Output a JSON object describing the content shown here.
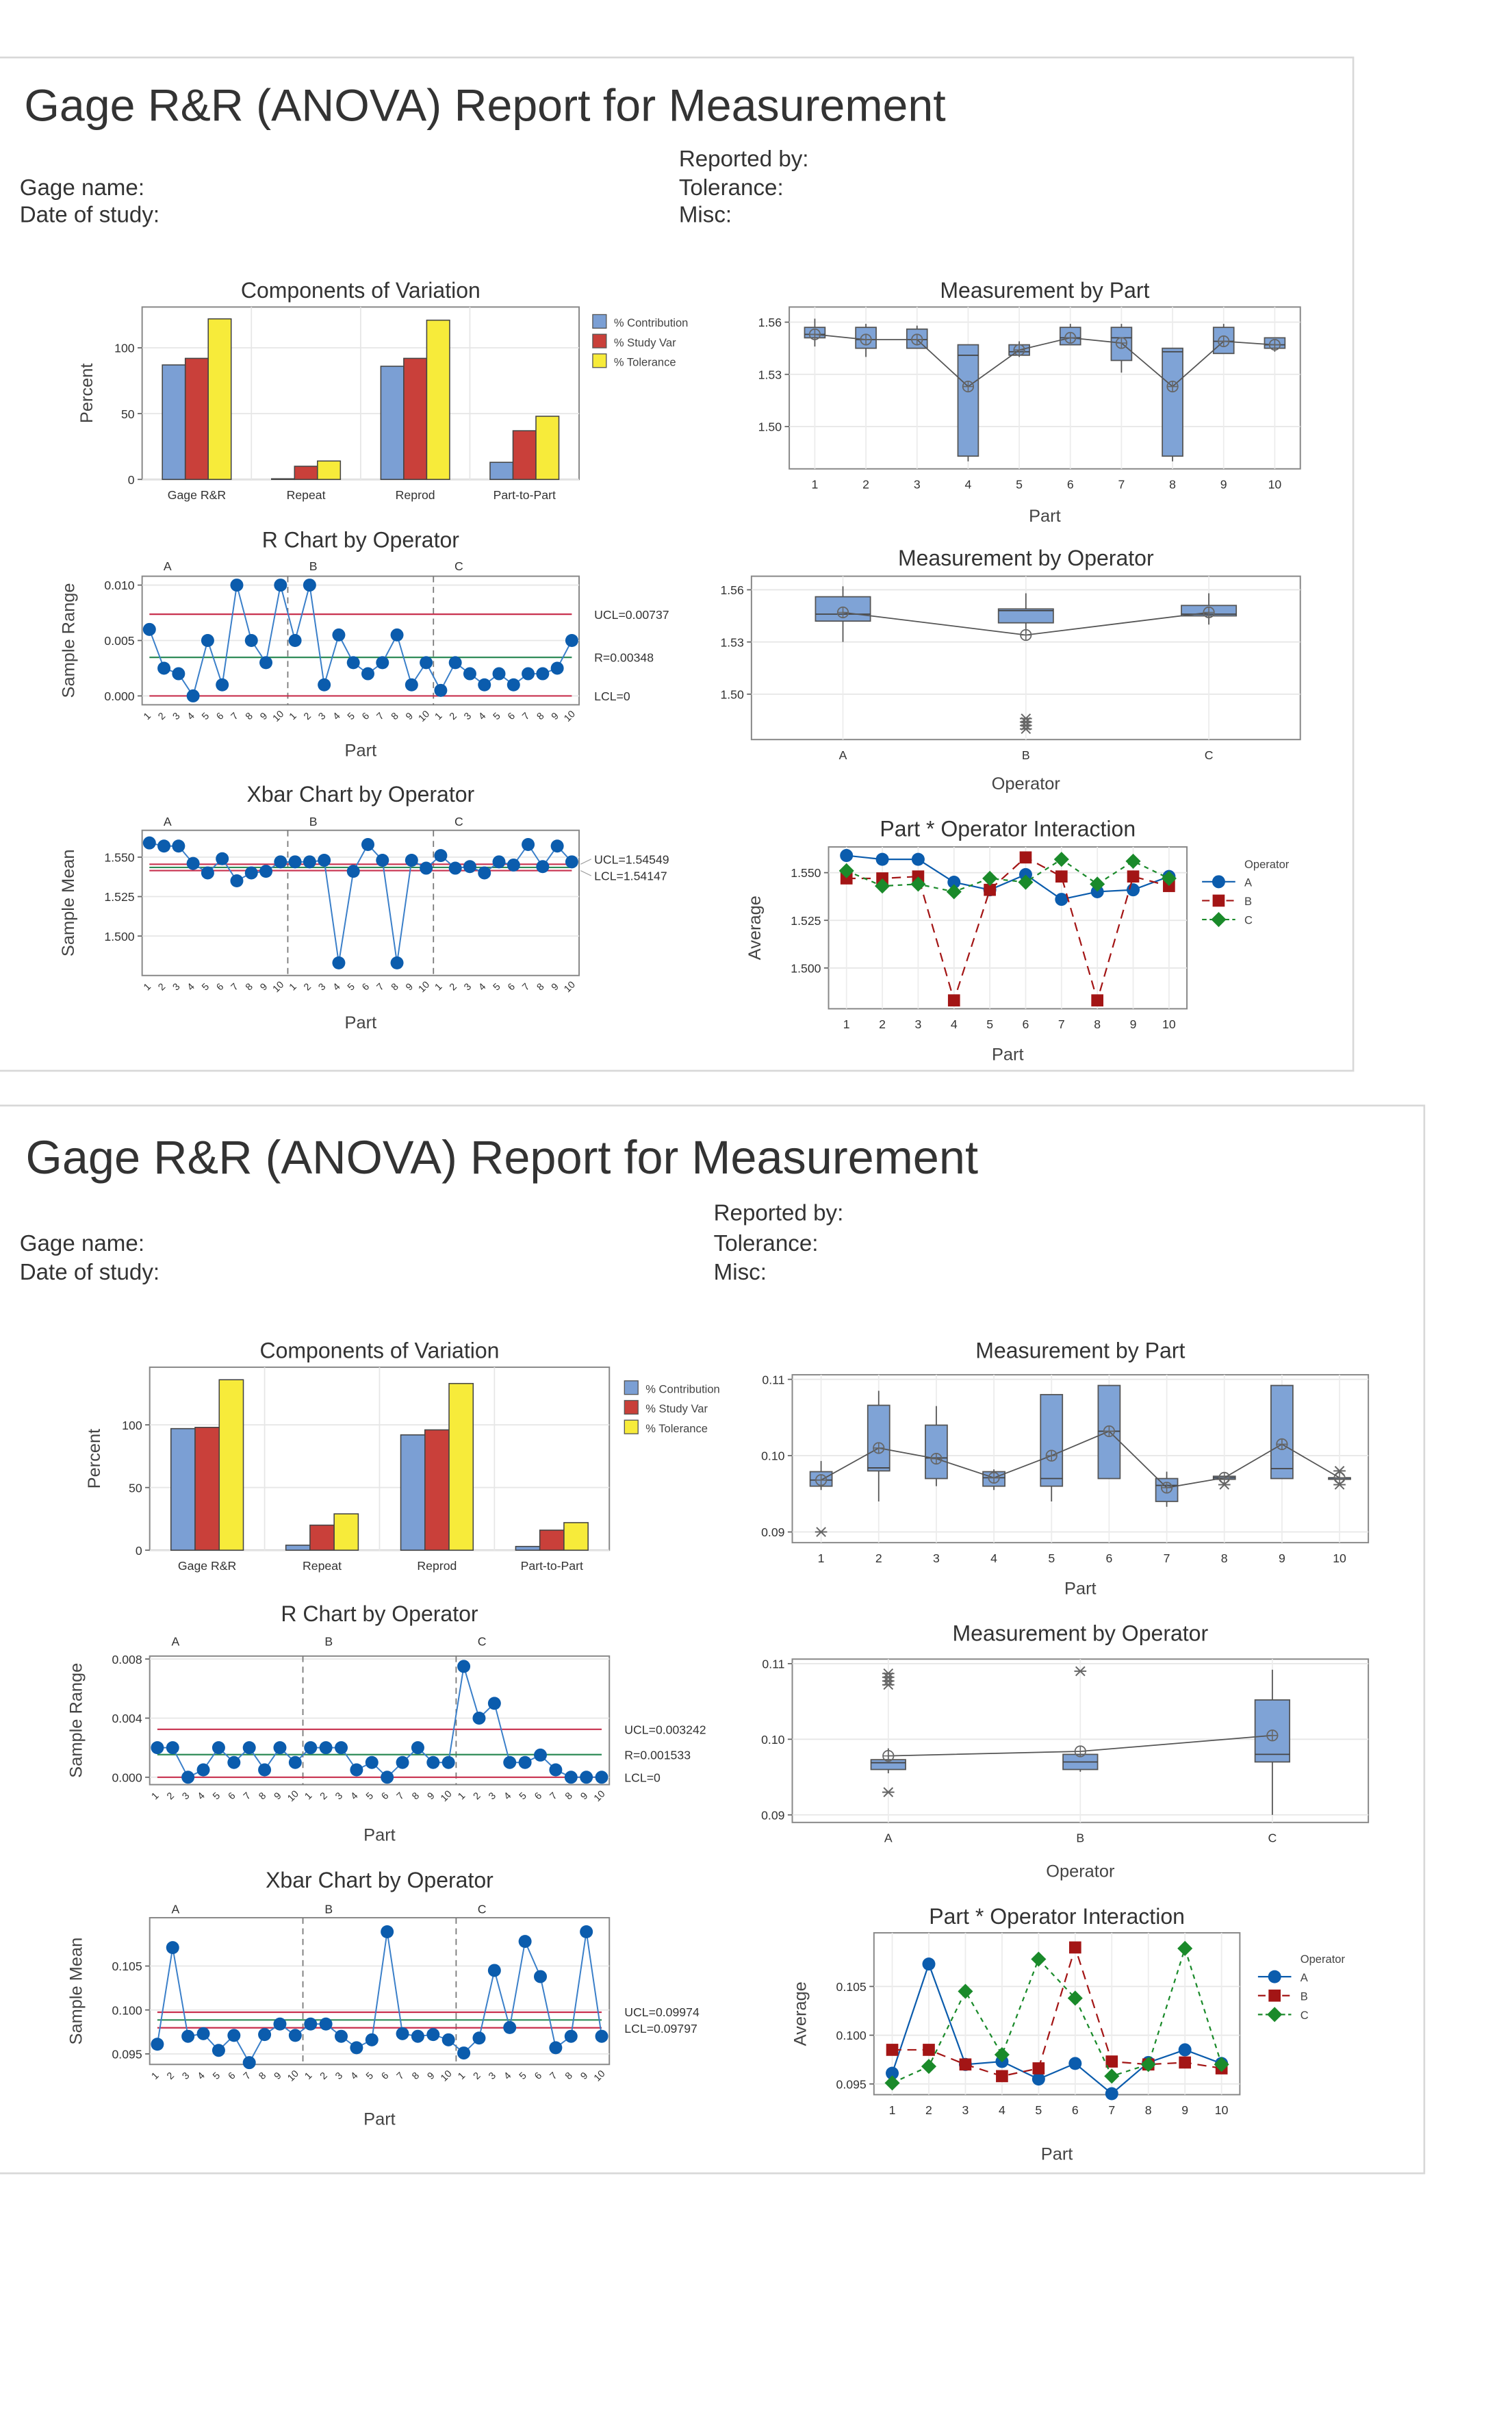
{
  "reports": [
    {
      "title": "Gage R&R (ANOVA) Report for Measurement",
      "reported_by": "Reported by:",
      "gage_name": "Gage name:",
      "tolerance": "Tolerance:",
      "date_of_study": "Date of study:",
      "misc": "Misc:"
    },
    {
      "title": "Gage R&R (ANOVA) Report for Measurement",
      "reported_by": "Reported by:",
      "gage_name": "Gage name:",
      "tolerance": "Tolerance:",
      "date_of_study": "Date of study:",
      "misc": "Misc:"
    }
  ],
  "colors": {
    "contribution": "#7b9fd4",
    "study_var": "#c9403a",
    "tolerance": "#f7eb3a",
    "point": "#0b5cad",
    "limit": "#c8304e",
    "center": "#2e8b57",
    "box": "#7fa3d6",
    "op_a": "#0b5cad",
    "op_b": "#a31515",
    "op_c": "#1a8a2a"
  },
  "chart_data": [
    {
      "type": "bar",
      "title": "Components of Variation",
      "ylabel": "Percent",
      "ylim": [
        0,
        131
      ],
      "yticks": [
        "0",
        "50",
        "100"
      ],
      "grid": true,
      "legend": "right",
      "categories": [
        "Gage R&R",
        "Repeat",
        "Reprod",
        "Part-to-Part"
      ],
      "series": [
        {
          "name": "% Contribution",
          "values": [
            87,
            0.5,
            86,
            13
          ]
        },
        {
          "name": "% Study Var",
          "values": [
            92,
            10,
            92,
            37
          ]
        },
        {
          "name": "% Tolerance",
          "values": [
            122,
            14,
            121,
            48
          ]
        }
      ]
    },
    {
      "type": "line",
      "title": "R Chart by Operator",
      "ylabel": "Sample Range",
      "xlabel": "Part",
      "ylim": [
        -0.0008,
        0.0108
      ],
      "yticks": [
        "0.000",
        "0.005",
        "0.010"
      ],
      "x_tick_labels": [
        "1",
        "2",
        "3",
        "4",
        "5",
        "6",
        "7",
        "8",
        "9",
        "10"
      ],
      "series": [
        {
          "name": "A",
          "values": [
            0.006,
            0.0025,
            0.002,
            0,
            0.005,
            0.001,
            0.01,
            0.005,
            0.003,
            0.01
          ]
        },
        {
          "name": "B",
          "values": [
            0.005,
            0.01,
            0.001,
            0.0055,
            0.003,
            0.002,
            0.003,
            0.0055,
            0.001,
            0.003
          ]
        },
        {
          "name": "C",
          "values": [
            0.0005,
            0.003,
            0.002,
            0.001,
            0.002,
            0.001,
            0.002,
            0.002,
            0.0025,
            0.005
          ]
        }
      ],
      "limits": [
        {
          "label": "UCL=0.00737",
          "value": 0.00737,
          "kind": "limit"
        },
        {
          "label": "R=0.00348",
          "value": 0.00348,
          "kind": "center"
        },
        {
          "label": "LCL=0",
          "value": 0,
          "kind": "limit"
        }
      ]
    },
    {
      "type": "line",
      "title": "Xbar Chart by Operator",
      "ylabel": "Sample Mean",
      "xlabel": "Part",
      "ylim": [
        1.475,
        1.567
      ],
      "yticks": [
        "1.500",
        "1.525",
        "1.550"
      ],
      "x_tick_labels": [
        "1",
        "2",
        "3",
        "4",
        "5",
        "6",
        "7",
        "8",
        "9",
        "10"
      ],
      "series": [
        {
          "name": "A",
          "values": [
            1.559,
            1.557,
            1.557,
            1.546,
            1.54,
            1.549,
            1.535,
            1.54,
            1.541,
            1.547
          ]
        },
        {
          "name": "B",
          "values": [
            1.547,
            1.547,
            1.548,
            1.483,
            1.541,
            1.558,
            1.548,
            1.483,
            1.548,
            1.543
          ]
        },
        {
          "name": "C",
          "values": [
            1.551,
            1.543,
            1.544,
            1.54,
            1.547,
            1.545,
            1.558,
            1.544,
            1.557,
            1.547
          ]
        }
      ],
      "limits": [
        {
          "label": "UCL=1.54549",
          "value": 1.54549,
          "kind": "limit"
        },
        {
          "label": "",
          "value": 1.54348,
          "kind": "center"
        },
        {
          "label": "LCL=1.54147",
          "value": 1.54147,
          "kind": "limit"
        }
      ]
    },
    {
      "type": "box",
      "title": "Measurement by Part",
      "xlabel": "Part",
      "ylim": [
        1.4757,
        1.5687
      ],
      "yticks": [
        "1.50",
        "1.53",
        "1.56"
      ],
      "categories": [
        "1",
        "2",
        "3",
        "4",
        "5",
        "6",
        "7",
        "8",
        "9",
        "10"
      ],
      "boxes": [
        {
          "q1": 1.551,
          "median": 1.553,
          "q3": 1.557,
          "min": 1.546,
          "max": 1.562,
          "mean": 1.553
        },
        {
          "q1": 1.545,
          "median": 1.55,
          "q3": 1.557,
          "min": 1.54,
          "max": 1.559,
          "mean": 1.55
        },
        {
          "q1": 1.545,
          "median": 1.55,
          "q3": 1.556,
          "min": 1.545,
          "max": 1.558,
          "mean": 1.55
        },
        {
          "q1": 1.483,
          "median": 1.541,
          "q3": 1.547,
          "min": 1.48,
          "max": 1.547,
          "mean": 1.523
        },
        {
          "q1": 1.541,
          "median": 1.543,
          "q3": 1.547,
          "min": 1.54,
          "max": 1.549,
          "mean": 1.544
        },
        {
          "q1": 1.547,
          "median": 1.551,
          "q3": 1.557,
          "min": 1.547,
          "max": 1.559,
          "mean": 1.551
        },
        {
          "q1": 1.538,
          "median": 1.551,
          "q3": 1.557,
          "min": 1.531,
          "max": 1.559,
          "mean": 1.548
        },
        {
          "q1": 1.483,
          "median": 1.543,
          "q3": 1.545,
          "min": 1.48,
          "max": 1.545,
          "mean": 1.523
        },
        {
          "q1": 1.542,
          "median": 1.549,
          "q3": 1.557,
          "min": 1.542,
          "max": 1.559,
          "mean": 1.549
        },
        {
          "q1": 1.545,
          "median": 1.547,
          "q3": 1.551,
          "min": 1.543,
          "max": 1.551,
          "mean": 1.547
        }
      ]
    },
    {
      "type": "box",
      "title": "Measurement by Operator",
      "xlabel": "Operator",
      "ylim": [
        1.4739,
        1.5678
      ],
      "yticks": [
        "1.50",
        "1.53",
        "1.56"
      ],
      "categories": [
        "A",
        "B",
        "C"
      ],
      "boxes": [
        {
          "q1": 1.542,
          "median": 1.546,
          "q3": 1.556,
          "min": 1.53,
          "max": 1.562,
          "mean": 1.547
        },
        {
          "q1": 1.541,
          "median": 1.548,
          "q3": 1.549,
          "min": 1.535,
          "max": 1.558,
          "mean": 1.534,
          "outliers": [
            1.48,
            1.482,
            1.484,
            1.486
          ]
        },
        {
          "q1": 1.545,
          "median": 1.546,
          "q3": 1.551,
          "min": 1.54,
          "max": 1.558,
          "mean": 1.547
        }
      ]
    },
    {
      "type": "line",
      "title": "Part * Operator Interaction",
      "ylabel": "Average",
      "xlabel": "Part",
      "ylim": [
        1.4786,
        1.5635
      ],
      "yticks": [
        "1.500",
        "1.525",
        "1.550"
      ],
      "legend_title": "Operator",
      "legend": "right",
      "categories": [
        "1",
        "2",
        "3",
        "4",
        "5",
        "6",
        "7",
        "8",
        "9",
        "10"
      ],
      "series": [
        {
          "name": "A",
          "values": [
            1.559,
            1.557,
            1.557,
            1.545,
            1.541,
            1.549,
            1.536,
            1.54,
            1.541,
            1.548
          ]
        },
        {
          "name": "B",
          "values": [
            1.547,
            1.547,
            1.548,
            1.483,
            1.541,
            1.558,
            1.548,
            1.483,
            1.548,
            1.543
          ]
        },
        {
          "name": "C",
          "values": [
            1.551,
            1.543,
            1.544,
            1.54,
            1.547,
            1.545,
            1.557,
            1.544,
            1.556,
            1.547
          ]
        }
      ]
    },
    {
      "type": "bar",
      "title": "Components of Variation",
      "ylabel": "Percent",
      "ylim": [
        0,
        146
      ],
      "yticks": [
        "0",
        "50",
        "100"
      ],
      "grid": true,
      "legend": "right",
      "categories": [
        "Gage R&R",
        "Repeat",
        "Reprod",
        "Part-to-Part"
      ],
      "series": [
        {
          "name": "% Contribution",
          "values": [
            97,
            4,
            92,
            3
          ]
        },
        {
          "name": "% Study Var",
          "values": [
            98,
            20,
            96,
            16
          ]
        },
        {
          "name": "% Tolerance",
          "values": [
            136,
            29,
            133,
            22
          ]
        }
      ]
    },
    {
      "type": "line",
      "title": "R Chart by Operator",
      "ylabel": "Sample Range",
      "xlabel": "Part",
      "ylim": [
        -0.0005,
        0.0082
      ],
      "yticks": [
        "0.000",
        "0.004",
        "0.008"
      ],
      "x_tick_labels": [
        "1",
        "2",
        "3",
        "4",
        "5",
        "6",
        "7",
        "8",
        "9",
        "10"
      ],
      "series": [
        {
          "name": "A",
          "values": [
            0.002,
            0.002,
            0,
            0.0005,
            0.002,
            0.001,
            0.002,
            0.0005,
            0.002,
            0.001
          ]
        },
        {
          "name": "B",
          "values": [
            0.002,
            0.002,
            0.002,
            0.0005,
            0.001,
            0,
            0.001,
            0.002,
            0.001,
            0.001
          ]
        },
        {
          "name": "C",
          "values": [
            0.0075,
            0.004,
            0.005,
            0.001,
            0.001,
            0.0015,
            0.0005,
            0,
            0,
            0
          ]
        }
      ],
      "limits": [
        {
          "label": "UCL=0.003242",
          "value": 0.003242,
          "kind": "limit"
        },
        {
          "label": "R=0.001533",
          "value": 0.001533,
          "kind": "center"
        },
        {
          "label": "LCL=0",
          "value": 0,
          "kind": "limit"
        }
      ]
    },
    {
      "type": "line",
      "title": "Xbar Chart by Operator",
      "ylabel": "Sample Mean",
      "xlabel": "Part",
      "ylim": [
        0.0938,
        0.1105
      ],
      "yticks": [
        "0.095",
        "0.100",
        "0.105"
      ],
      "x_tick_labels": [
        "1",
        "2",
        "3",
        "4",
        "5",
        "6",
        "7",
        "8",
        "9",
        "10"
      ],
      "series": [
        {
          "name": "A",
          "values": [
            0.0961,
            0.1071,
            0.097,
            0.0973,
            0.0954,
            0.0971,
            0.094,
            0.0972,
            0.0984,
            0.0971
          ]
        },
        {
          "name": "B",
          "values": [
            0.0984,
            0.0984,
            0.097,
            0.0957,
            0.0966,
            0.1089,
            0.0973,
            0.097,
            0.0972,
            0.0966
          ]
        },
        {
          "name": "C",
          "values": [
            0.0951,
            0.0968,
            0.1045,
            0.098,
            0.1078,
            0.1038,
            0.0957,
            0.097,
            0.1089,
            0.097
          ]
        }
      ],
      "limits": [
        {
          "label": "UCL=0.09974",
          "value": 0.09974,
          "kind": "limit"
        },
        {
          "label": "",
          "value": 0.09886,
          "kind": "center"
        },
        {
          "label": "LCL=0.09797",
          "value": 0.09797,
          "kind": "limit"
        }
      ]
    },
    {
      "type": "box",
      "title": "Measurement by Part",
      "xlabel": "Part",
      "ylim": [
        0.0886,
        0.1106
      ],
      "yticks": [
        "0.09",
        "0.10",
        "0.11"
      ],
      "categories": [
        "1",
        "2",
        "3",
        "4",
        "5",
        "6",
        "7",
        "8",
        "9",
        "10"
      ],
      "boxes": [
        {
          "q1": 0.096,
          "median": 0.0968,
          "q3": 0.0979,
          "min": 0.0955,
          "max": 0.0993,
          "mean": 0.0968,
          "outliers": [
            0.09
          ]
        },
        {
          "q1": 0.098,
          "median": 0.0984,
          "q3": 0.1066,
          "min": 0.094,
          "max": 0.1085,
          "mean": 0.101
        },
        {
          "q1": 0.097,
          "median": 0.0997,
          "q3": 0.104,
          "min": 0.096,
          "max": 0.1065,
          "mean": 0.0996
        },
        {
          "q1": 0.096,
          "median": 0.0971,
          "q3": 0.0979,
          "min": 0.0955,
          "max": 0.0982,
          "mean": 0.0971
        },
        {
          "q1": 0.096,
          "median": 0.097,
          "q3": 0.108,
          "min": 0.094,
          "max": 0.108,
          "mean": 0.1
        },
        {
          "q1": 0.097,
          "median": 0.1032,
          "q3": 0.1092,
          "min": 0.097,
          "max": 0.1092,
          "mean": 0.1032
        },
        {
          "q1": 0.094,
          "median": 0.0961,
          "q3": 0.097,
          "min": 0.0933,
          "max": 0.0979,
          "mean": 0.0958
        },
        {
          "q1": 0.0969,
          "median": 0.0971,
          "q3": 0.0973,
          "min": 0.0969,
          "max": 0.0973,
          "mean": 0.0971,
          "outliers": [
            0.0962
          ]
        },
        {
          "q1": 0.097,
          "median": 0.0983,
          "q3": 0.1092,
          "min": 0.097,
          "max": 0.1092,
          "mean": 0.1015
        },
        {
          "q1": 0.0971,
          "median": 0.0971,
          "q3": 0.0971,
          "min": 0.0971,
          "max": 0.0971,
          "mean": 0.0971,
          "outliers": [
            0.098,
            0.0962
          ]
        }
      ]
    },
    {
      "type": "box",
      "title": "Measurement by Operator",
      "xlabel": "Operator",
      "ylim": [
        0.089,
        0.1106
      ],
      "yticks": [
        "0.09",
        "0.10",
        "0.11"
      ],
      "categories": [
        "A",
        "B",
        "C"
      ],
      "boxes": [
        {
          "q1": 0.096,
          "median": 0.0969,
          "q3": 0.0973,
          "min": 0.0955,
          "max": 0.0988,
          "mean": 0.0978,
          "outliers": [
            0.1072,
            0.1077,
            0.1082,
            0.1087,
            0.093
          ]
        },
        {
          "q1": 0.096,
          "median": 0.097,
          "q3": 0.098,
          "min": 0.0957,
          "max": 0.098,
          "mean": 0.0984,
          "outliers": [
            0.109
          ]
        },
        {
          "q1": 0.097,
          "median": 0.098,
          "q3": 0.1052,
          "min": 0.09,
          "max": 0.1092,
          "mean": 0.1005
        }
      ]
    },
    {
      "type": "line",
      "title": "Part * Operator Interaction",
      "ylabel": "Average",
      "xlabel": "Part",
      "ylim": [
        0.0939,
        0.1105
      ],
      "yticks": [
        "0.095",
        "0.100",
        "0.105"
      ],
      "legend_title": "Operator",
      "legend": "right",
      "categories": [
        "1",
        "2",
        "3",
        "4",
        "5",
        "6",
        "7",
        "8",
        "9",
        "10"
      ],
      "series": [
        {
          "name": "A",
          "values": [
            0.0961,
            0.1073,
            0.097,
            0.0973,
            0.0955,
            0.0971,
            0.094,
            0.0972,
            0.0985,
            0.0971
          ]
        },
        {
          "name": "B",
          "values": [
            0.0985,
            0.0985,
            0.097,
            0.0958,
            0.0966,
            0.109,
            0.0973,
            0.097,
            0.0972,
            0.0966
          ]
        },
        {
          "name": "C",
          "values": [
            0.0951,
            0.0968,
            0.1045,
            0.098,
            0.1078,
            0.1038,
            0.0958,
            0.097,
            0.1089,
            0.097
          ]
        }
      ]
    }
  ]
}
